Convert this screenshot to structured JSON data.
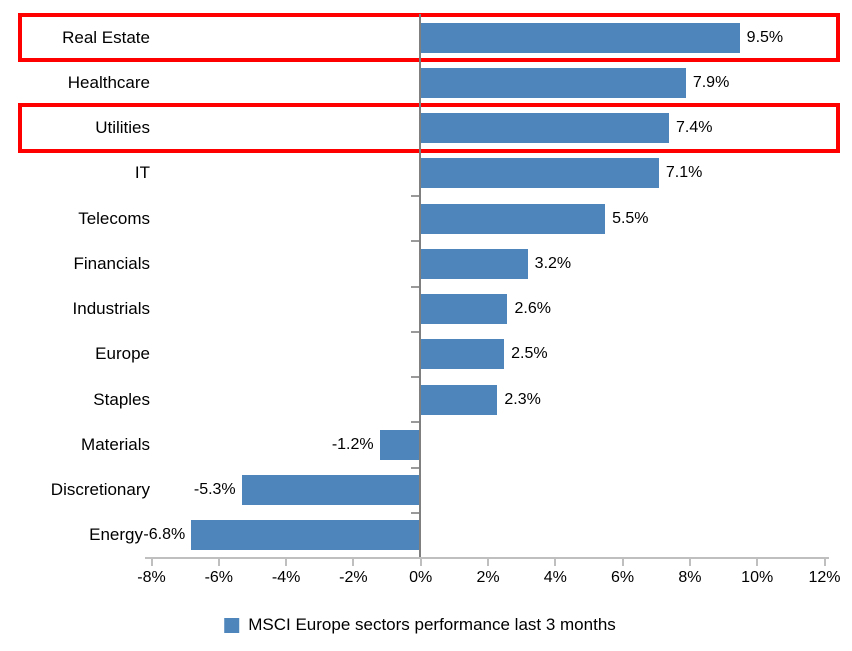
{
  "chart_data": {
    "type": "bar",
    "orientation": "horizontal",
    "title": "",
    "categories": [
      "Real Estate",
      "Healthcare",
      "Utilities",
      "IT",
      "Telecoms",
      "Financials",
      "Industrials",
      "Europe",
      "Staples",
      "Materials",
      "Discretionary",
      "Energy"
    ],
    "values": [
      9.5,
      7.9,
      7.4,
      7.1,
      5.5,
      3.2,
      2.6,
      2.5,
      2.3,
      -1.2,
      -5.3,
      -6.8
    ],
    "data_labels": [
      "9.5%",
      "7.9%",
      "7.4%",
      "7.1%",
      "5.5%",
      "3.2%",
      "2.6%",
      "2.5%",
      "2.3%",
      "-1.2%",
      "-5.3%",
      "-6.8%"
    ],
    "x_axis": {
      "min": -8,
      "max": 12,
      "step": 2,
      "tick_labels": [
        "-8%",
        "-6%",
        "-4%",
        "-2%",
        "0%",
        "2%",
        "4%",
        "6%",
        "8%",
        "10%",
        "12%"
      ]
    },
    "grid": false,
    "legend": {
      "label": "MSCI Europe sectors performance last 3 months",
      "position": "bottom"
    },
    "colors": {
      "bar": "#4E86BC",
      "highlight": "#FF0000",
      "zero_axis": "#7F7F7F",
      "x_axis": "#BFBFBF"
    },
    "highlighted_categories": [
      "Real Estate",
      "Utilities"
    ]
  }
}
